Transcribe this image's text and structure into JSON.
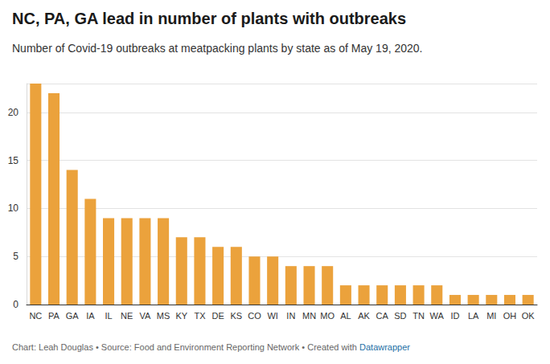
{
  "chart_data": {
    "type": "bar",
    "title": "NC, PA, GA lead in number of plants with outbreaks",
    "subtitle": "Number of Covid-19 outbreaks at meatpacking plants by state as of May 19, 2020.",
    "credits": "Chart: Leah Douglas • Source: Food and Environment Reporting Network • Created with",
    "credits_link": "Datawrapper",
    "categories": [
      "NC",
      "PA",
      "GA",
      "IA",
      "IL",
      "NE",
      "VA",
      "MS",
      "KY",
      "TX",
      "DE",
      "KS",
      "CO",
      "WI",
      "IN",
      "MN",
      "MO",
      "AL",
      "AK",
      "CA",
      "SD",
      "TN",
      "WA",
      "ID",
      "LA",
      "MI",
      "OH",
      "OK"
    ],
    "values": [
      23,
      22,
      14,
      11,
      9,
      9,
      9,
      9,
      7,
      7,
      6,
      6,
      5,
      5,
      4,
      4,
      4,
      2,
      2,
      2,
      2,
      2,
      2,
      1,
      1,
      1,
      1,
      1
    ],
    "color": "#eba23c",
    "ylim": [
      0,
      23
    ],
    "yticks": [
      0,
      5,
      10,
      15,
      20
    ],
    "grid": true
  }
}
